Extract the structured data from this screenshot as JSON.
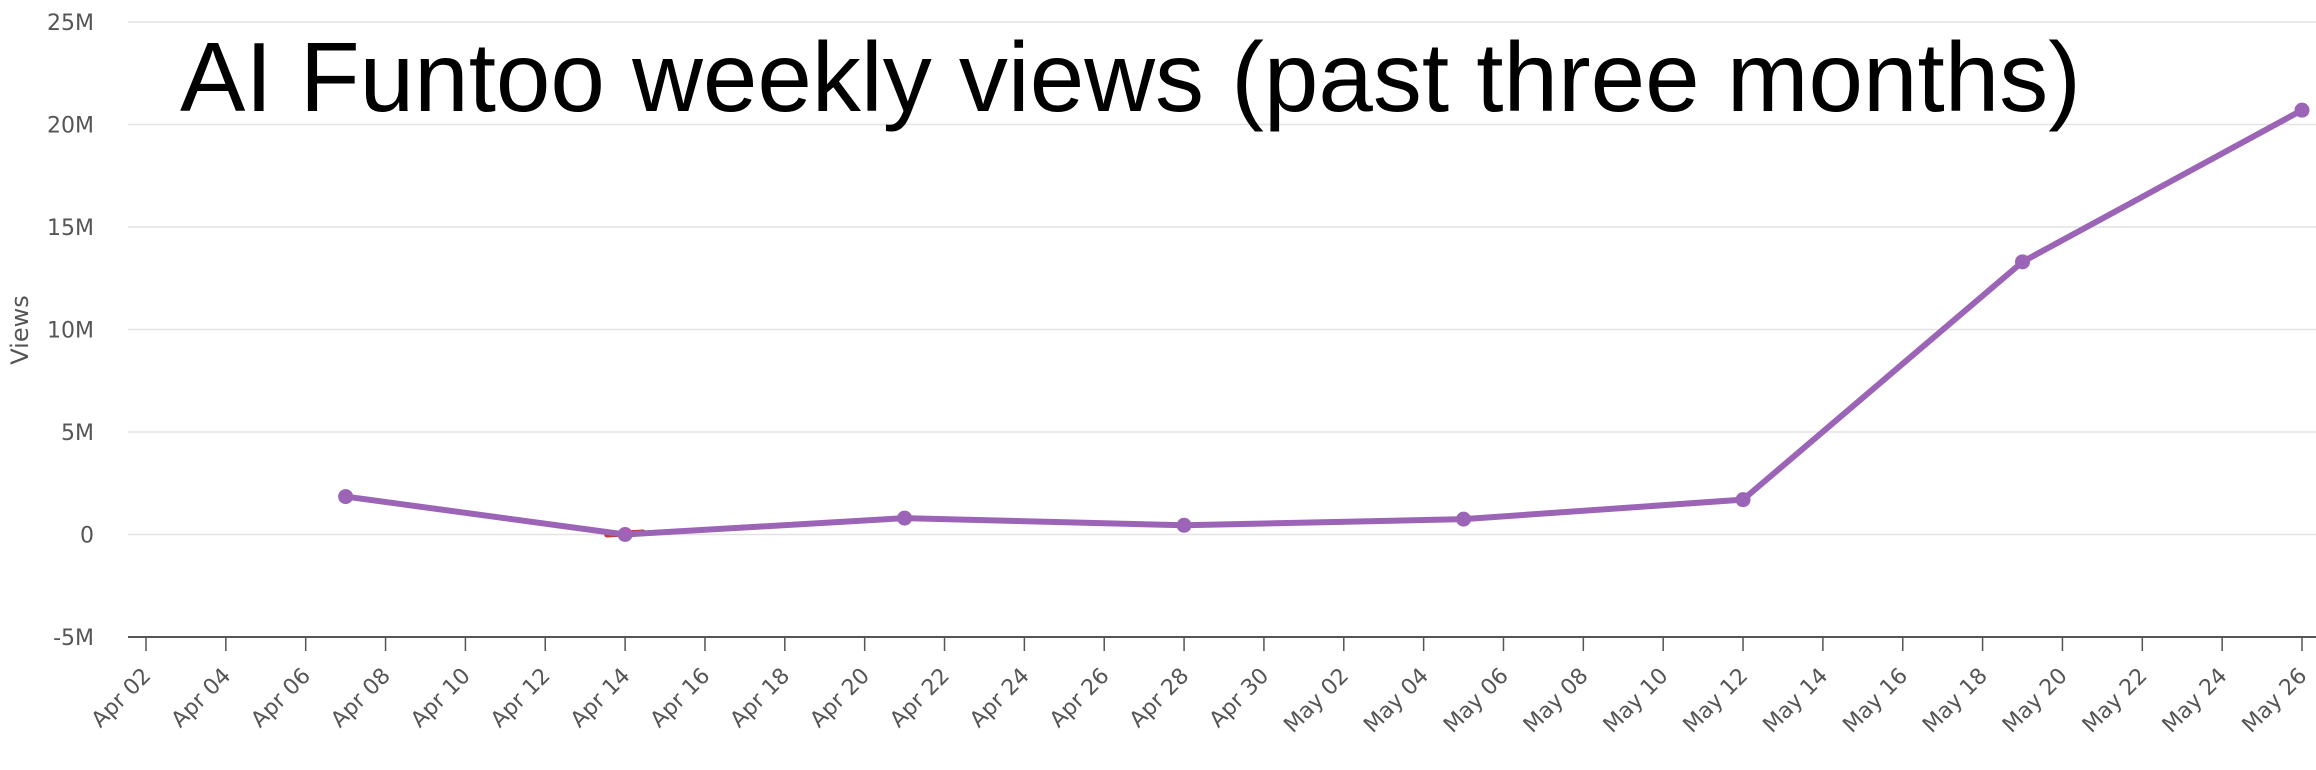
{
  "chart_data": {
    "type": "line",
    "title": "AI Funtoo weekly views (past three months)",
    "xlabel": "",
    "ylabel": "Views",
    "ylim": [
      -5000000,
      25000000
    ],
    "y_ticks": [
      {
        "value": 25000000,
        "label": "25M"
      },
      {
        "value": 20000000,
        "label": "20M"
      },
      {
        "value": 15000000,
        "label": "15M"
      },
      {
        "value": 10000000,
        "label": "10M"
      },
      {
        "value": 5000000,
        "label": "5M"
      },
      {
        "value": 0,
        "label": "0"
      },
      {
        "value": -5000000,
        "label": "-5M"
      }
    ],
    "x_range": [
      "2024-04-02",
      "2024-05-26"
    ],
    "x_tick_labels": [
      "Apr 02",
      "Apr 04",
      "Apr 06",
      "Apr 08",
      "Apr 10",
      "Apr 12",
      "Apr 14",
      "Apr 16",
      "Apr 18",
      "Apr 20",
      "Apr 22",
      "Apr 24",
      "Apr 26",
      "Apr 28",
      "Apr 30",
      "May 02",
      "May 04",
      "May 06",
      "May 08",
      "May 10",
      "May 12",
      "May 14",
      "May 16",
      "May 18",
      "May 20",
      "May 22",
      "May 24",
      "May 26"
    ],
    "grid": true,
    "series": [
      {
        "color": "#9b64b6",
        "x": [
          "Apr 07",
          "Apr 14",
          "Apr 21",
          "Apr 28",
          "May 05",
          "May 12",
          "May 19",
          "May 26"
        ],
        "values": [
          1850000,
          0,
          800000,
          450000,
          750000,
          1700000,
          13300000,
          20700000
        ]
      }
    ],
    "dip_segment_color": "#c0392b"
  }
}
